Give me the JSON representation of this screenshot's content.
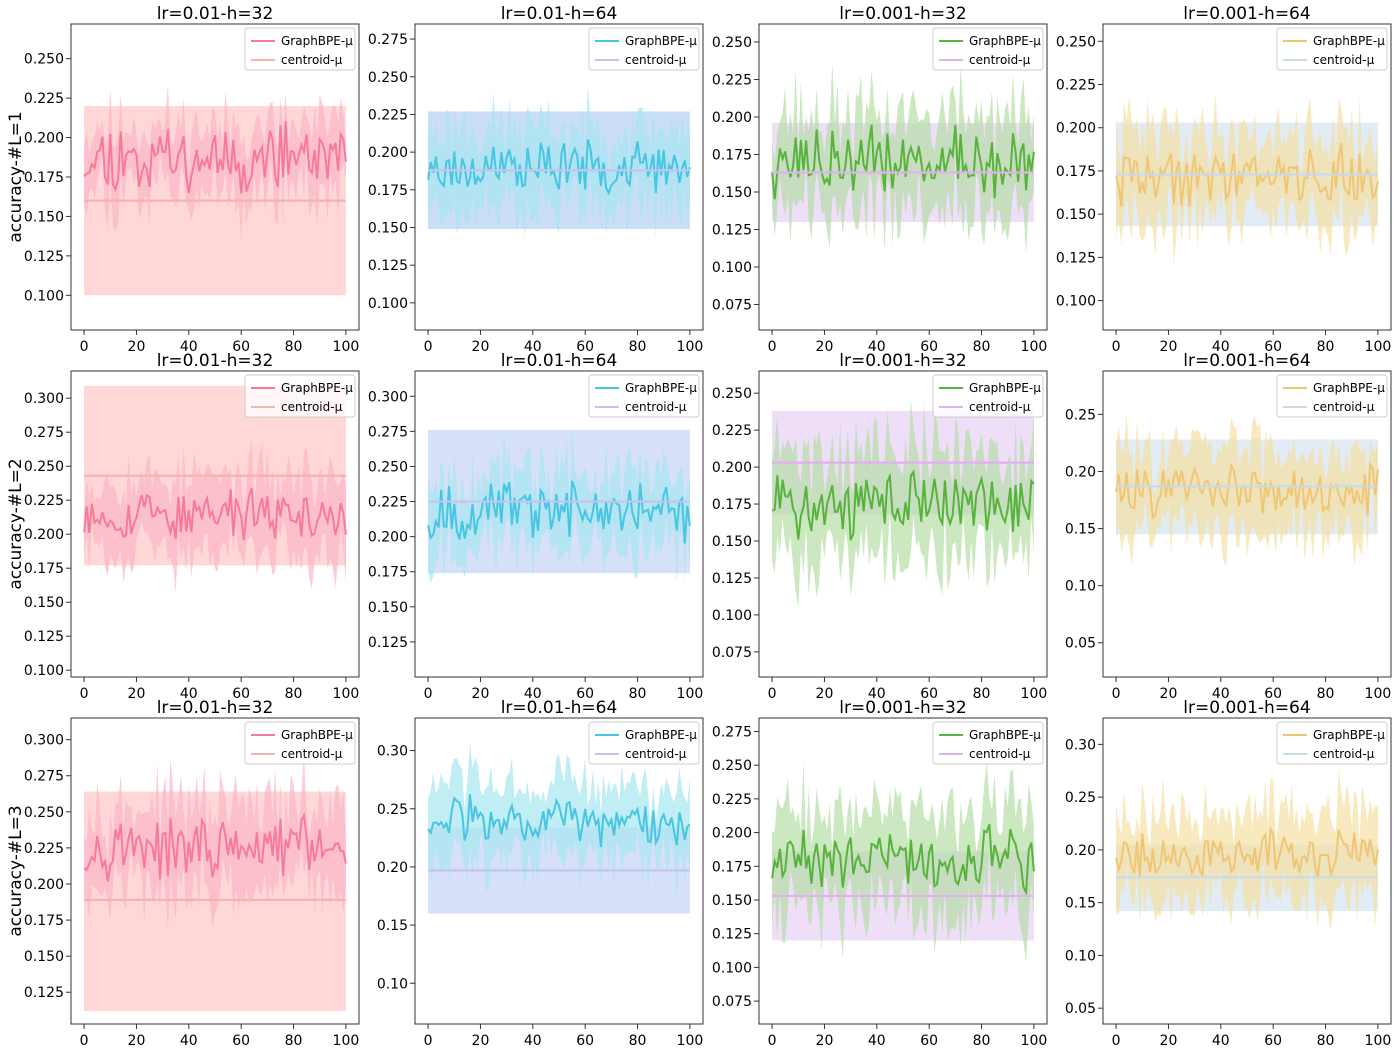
{
  "figure": {
    "rows": 3,
    "cols": 4
  },
  "chart_data": [
    {
      "type": "line",
      "row": 0,
      "col": 0,
      "title": "lr=0.01-h=32",
      "ylabel": "accuracy-#L=1",
      "xlim": [
        -5,
        105
      ],
      "ylim": [
        0.078,
        0.272
      ],
      "xticks": [
        0,
        20,
        40,
        60,
        80,
        100
      ],
      "yticks": [
        0.1,
        0.125,
        0.15,
        0.175,
        0.2,
        0.225,
        0.25
      ],
      "series": [
        {
          "name": "GraphBPE-μ",
          "color": "#f77b98",
          "band_color": "#fbb6c9",
          "mean": 0.188,
          "amp": 0.017,
          "band": 0.022,
          "seed": 11
        },
        {
          "name": "centroid-μ",
          "color": "#f4b3b3",
          "band_color": "#ffcaca",
          "constant": 0.16,
          "band_lo": 0.1,
          "band_hi": 0.22
        }
      ]
    },
    {
      "type": "line",
      "row": 0,
      "col": 1,
      "title": "lr=0.01-h=64",
      "ylabel": "",
      "xlim": [
        -5,
        105
      ],
      "ylim": [
        0.082,
        0.285
      ],
      "xticks": [
        0,
        20,
        40,
        60,
        80,
        100
      ],
      "yticks": [
        0.1,
        0.125,
        0.15,
        0.175,
        0.2,
        0.225,
        0.25,
        0.275
      ],
      "series": [
        {
          "name": "GraphBPE-μ",
          "color": "#46c6e2",
          "band_color": "#a7e5f1",
          "mean": 0.19,
          "amp": 0.013,
          "band": 0.028,
          "seed": 23
        },
        {
          "name": "centroid-μ",
          "color": "#c4c4ee",
          "band_color": "#b8d3f4",
          "constant": 0.188,
          "band_lo": 0.149,
          "band_hi": 0.227
        }
      ]
    },
    {
      "type": "line",
      "row": 0,
      "col": 2,
      "title": "lr=0.001-h=32",
      "ylabel": "",
      "xlim": [
        -5,
        105
      ],
      "ylim": [
        0.058,
        0.262
      ],
      "xticks": [
        0,
        20,
        40,
        60,
        80,
        100
      ],
      "yticks": [
        0.075,
        0.1,
        0.125,
        0.15,
        0.175,
        0.2,
        0.225,
        0.25
      ],
      "series": [
        {
          "name": "GraphBPE-μ",
          "color": "#58b33d",
          "band_color": "#b5dea7",
          "mean": 0.17,
          "amp": 0.018,
          "band": 0.035,
          "seed": 37
        },
        {
          "name": "centroid-μ",
          "color": "#e4aef0",
          "band_color": "#ead3f6",
          "constant": 0.163,
          "band_lo": 0.13,
          "band_hi": 0.196
        }
      ]
    },
    {
      "type": "line",
      "row": 0,
      "col": 3,
      "title": "lr=0.001-h=64",
      "ylabel": "",
      "xlim": [
        -5,
        105
      ],
      "ylim": [
        0.083,
        0.26
      ],
      "xticks": [
        0,
        20,
        40,
        60,
        80,
        100
      ],
      "yticks": [
        0.1,
        0.125,
        0.15,
        0.175,
        0.2,
        0.225,
        0.25
      ],
      "series": [
        {
          "name": "GraphBPE-μ",
          "color": "#f0c673",
          "band_color": "#f5dfa4",
          "mean": 0.172,
          "amp": 0.014,
          "band": 0.028,
          "seed": 41
        },
        {
          "name": "centroid-μ",
          "color": "#c7dbe8",
          "band_color": "#d8e5f2",
          "constant": 0.173,
          "band_lo": 0.143,
          "band_hi": 0.203
        }
      ]
    },
    {
      "type": "line",
      "row": 1,
      "col": 0,
      "title": "lr=0.01-h=32",
      "ylabel": "accuracy-#L=2",
      "xlim": [
        -5,
        105
      ],
      "ylim": [
        0.095,
        0.32
      ],
      "xticks": [
        0,
        20,
        40,
        60,
        80,
        100
      ],
      "yticks": [
        0.1,
        0.125,
        0.15,
        0.175,
        0.2,
        0.225,
        0.25,
        0.275,
        0.3
      ],
      "series": [
        {
          "name": "GraphBPE-μ",
          "color": "#f77b98",
          "band_color": "#fbb6c9",
          "mean": 0.214,
          "amp": 0.014,
          "band": 0.03,
          "seed": 53
        },
        {
          "name": "centroid-μ",
          "color": "#f4b3b3",
          "band_color": "#ffcaca",
          "constant": 0.243,
          "band_lo": 0.177,
          "band_hi": 0.309
        }
      ]
    },
    {
      "type": "line",
      "row": 1,
      "col": 1,
      "title": "lr=0.01-h=64",
      "ylabel": "",
      "xlim": [
        -5,
        105
      ],
      "ylim": [
        0.1,
        0.318
      ],
      "xticks": [
        0,
        20,
        40,
        60,
        80,
        100
      ],
      "yticks": [
        0.125,
        0.15,
        0.175,
        0.2,
        0.225,
        0.25,
        0.275,
        0.3
      ],
      "series": [
        {
          "name": "GraphBPE-μ",
          "color": "#46c6e2",
          "band_color": "#a7e5f1",
          "mean": 0.218,
          "amp": 0.016,
          "band": 0.03,
          "seed": 67
        },
        {
          "name": "centroid-μ",
          "color": "#c4c4ee",
          "band_color": "#c8d6f5",
          "constant": 0.225,
          "band_lo": 0.174,
          "band_hi": 0.276
        }
      ]
    },
    {
      "type": "line",
      "row": 1,
      "col": 2,
      "title": "lr=0.001-h=32",
      "ylabel": "",
      "xlim": [
        -5,
        105
      ],
      "ylim": [
        0.058,
        0.265
      ],
      "xticks": [
        0,
        20,
        40,
        60,
        80,
        100
      ],
      "yticks": [
        0.075,
        0.1,
        0.125,
        0.15,
        0.175,
        0.2,
        0.225,
        0.25
      ],
      "series": [
        {
          "name": "GraphBPE-μ",
          "color": "#58b33d",
          "band_color": "#b5dea7",
          "mean": 0.175,
          "amp": 0.018,
          "band": 0.04,
          "seed": 71
        },
        {
          "name": "centroid-μ",
          "color": "#e4aef0",
          "band_color": "#ead3f6",
          "constant": 0.203,
          "band_lo": 0.168,
          "band_hi": 0.238
        }
      ]
    },
    {
      "type": "line",
      "row": 1,
      "col": 3,
      "title": "lr=0.001-h=64",
      "ylabel": "",
      "xlim": [
        -5,
        105
      ],
      "ylim": [
        0.02,
        0.288
      ],
      "xticks": [
        0,
        20,
        40,
        60,
        80,
        100
      ],
      "yticks": [
        0.05,
        0.1,
        0.15,
        0.2,
        0.25
      ],
      "series": [
        {
          "name": "GraphBPE-μ",
          "color": "#f0c673",
          "band_color": "#f5dfa4",
          "mean": 0.185,
          "amp": 0.018,
          "band": 0.04,
          "seed": 83
        },
        {
          "name": "centroid-μ",
          "color": "#c7dbe8",
          "band_color": "#d8e5f2",
          "constant": 0.187,
          "band_lo": 0.145,
          "band_hi": 0.228
        }
      ]
    },
    {
      "type": "line",
      "row": 2,
      "col": 0,
      "title": "lr=0.01-h=32",
      "ylabel": "accuracy-#L=3",
      "xlim": [
        -5,
        105
      ],
      "ylim": [
        0.103,
        0.315
      ],
      "xticks": [
        0,
        20,
        40,
        60,
        80,
        100
      ],
      "yticks": [
        0.125,
        0.15,
        0.175,
        0.2,
        0.225,
        0.25,
        0.275,
        0.3
      ],
      "series": [
        {
          "name": "GraphBPE-μ",
          "color": "#f77b98",
          "band_color": "#fbb6c9",
          "mean": 0.225,
          "amp": 0.016,
          "band": 0.032,
          "seed": 97
        },
        {
          "name": "centroid-μ",
          "color": "#f4b3b3",
          "band_color": "#ffcaca",
          "constant": 0.189,
          "band_lo": 0.112,
          "band_hi": 0.264
        }
      ]
    },
    {
      "type": "line",
      "row": 2,
      "col": 1,
      "title": "lr=0.01-h=64",
      "ylabel": "",
      "xlim": [
        -5,
        105
      ],
      "ylim": [
        0.065,
        0.328
      ],
      "xticks": [
        0,
        20,
        40,
        60,
        80,
        100
      ],
      "yticks": [
        0.1,
        0.15,
        0.2,
        0.25,
        0.3
      ],
      "series": [
        {
          "name": "GraphBPE-μ",
          "color": "#46c6e2",
          "band_color": "#a7e5f1",
          "mean": 0.238,
          "amp": 0.017,
          "band": 0.035,
          "seed": 103
        },
        {
          "name": "centroid-μ",
          "color": "#c4c4ee",
          "band_color": "#c8d6f5",
          "constant": 0.197,
          "band_lo": 0.16,
          "band_hi": 0.234
        }
      ]
    },
    {
      "type": "line",
      "row": 2,
      "col": 2,
      "title": "lr=0.001-h=32",
      "ylabel": "",
      "xlim": [
        -5,
        105
      ],
      "ylim": [
        0.058,
        0.285
      ],
      "xticks": [
        0,
        20,
        40,
        60,
        80,
        100
      ],
      "yticks": [
        0.075,
        0.1,
        0.125,
        0.15,
        0.175,
        0.2,
        0.225,
        0.25,
        0.275
      ],
      "series": [
        {
          "name": "GraphBPE-μ",
          "color": "#58b33d",
          "band_color": "#b5dea7",
          "mean": 0.18,
          "amp": 0.018,
          "band": 0.04,
          "seed": 109
        },
        {
          "name": "centroid-μ",
          "color": "#e4aef0",
          "band_color": "#ead3f6",
          "constant": 0.153,
          "band_lo": 0.12,
          "band_hi": 0.186
        }
      ]
    },
    {
      "type": "line",
      "row": 2,
      "col": 3,
      "title": "lr=0.001-h=64",
      "ylabel": "",
      "xlim": [
        -5,
        105
      ],
      "ylim": [
        0.035,
        0.325
      ],
      "xticks": [
        0,
        20,
        40,
        60,
        80,
        100
      ],
      "yticks": [
        0.05,
        0.1,
        0.15,
        0.2,
        0.25,
        0.3
      ],
      "series": [
        {
          "name": "GraphBPE-μ",
          "color": "#f0c673",
          "band_color": "#f5dfa4",
          "mean": 0.195,
          "amp": 0.018,
          "band": 0.045,
          "seed": 127
        },
        {
          "name": "centroid-μ",
          "color": "#c7dbe8",
          "band_color": "#d8e5f2",
          "constant": 0.174,
          "band_lo": 0.142,
          "band_hi": 0.205
        }
      ]
    }
  ]
}
